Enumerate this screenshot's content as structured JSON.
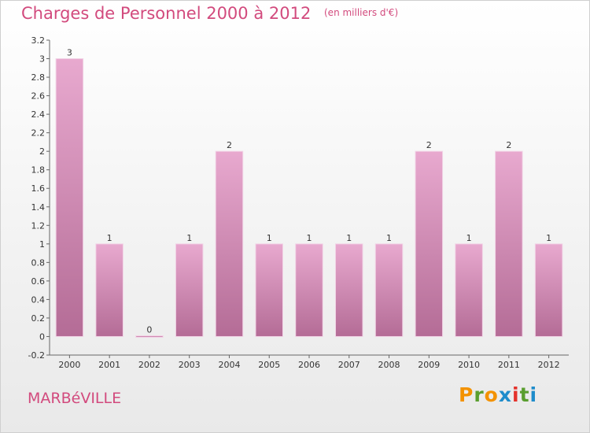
{
  "header": {
    "title": "Charges de Personnel 2000 à 2012",
    "unit": "(en milliers d'€)"
  },
  "footer": {
    "commune": "MARBéVILLE",
    "brand": "Proxiti"
  },
  "colors": {
    "accent": "#d24a7d",
    "bar_top": "#e8a9cf",
    "bar_bottom": "#b46c96",
    "brand_letters": [
      "#f39200",
      "#5a9e2f",
      "#f39200",
      "#1e8ccb",
      "#e4322b",
      "#5a9e2f",
      "#1e8ccb"
    ]
  },
  "chart_data": {
    "type": "bar",
    "categories": [
      "2000",
      "2001",
      "2002",
      "2003",
      "2004",
      "2005",
      "2006",
      "2007",
      "2008",
      "2009",
      "2010",
      "2011",
      "2012"
    ],
    "values": [
      3,
      1,
      0,
      1,
      2,
      1,
      1,
      1,
      1,
      2,
      1,
      2,
      1
    ],
    "data_labels": [
      "3",
      "1",
      "0",
      "1",
      "2",
      "1",
      "1",
      "1",
      "1",
      "2",
      "1",
      "2",
      "1"
    ],
    "ylim": [
      -0.2,
      3.2
    ],
    "yticks": [
      -0.2,
      0,
      0.2,
      0.4,
      0.6,
      0.8,
      1,
      1.2,
      1.4,
      1.6,
      1.8,
      2,
      2.2,
      2.4,
      2.6,
      2.8,
      3,
      3.2
    ],
    "ytick_labels": [
      "-0.2",
      "0",
      "0.2",
      "0.4",
      "0.6",
      "0.8",
      "1",
      "1.2",
      "1.4",
      "1.6",
      "1.8",
      "2",
      "2.2",
      "2.4",
      "2.6",
      "2.8",
      "3",
      "3.2"
    ],
    "grid": false,
    "legend": "none"
  }
}
